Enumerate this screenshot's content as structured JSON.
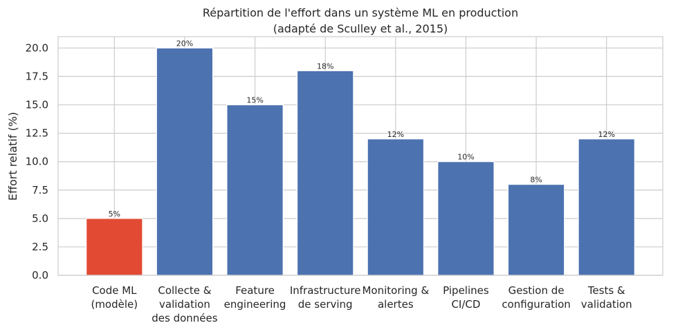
{
  "chart_data": {
    "type": "bar",
    "title": "Répartition de l'effort dans un système ML en production",
    "subtitle": "(adapté de Sculley et al., 2015)",
    "xlabel": "",
    "ylabel": "Effort relatif (%)",
    "ylim": [
      0,
      21
    ],
    "yticks": [
      0,
      2.5,
      5,
      7.5,
      10,
      12.5,
      15,
      17.5,
      20
    ],
    "ytick_labels": [
      "0.0",
      "2.5",
      "5.0",
      "7.5",
      "10.0",
      "12.5",
      "15.0",
      "17.5",
      "20.0"
    ],
    "grid": true,
    "categories": [
      "Code ML\n(modèle)",
      "Collecte &\nvalidation\ndes données",
      "Feature\nengineering",
      "Infrastructure\nde serving",
      "Monitoring &\nalertes",
      "Pipelines\nCI/CD",
      "Gestion de\nconfiguration",
      "Tests &\nvalidation"
    ],
    "values": [
      5,
      20,
      15,
      18,
      12,
      10,
      8,
      12
    ],
    "value_labels": [
      "5%",
      "20%",
      "15%",
      "18%",
      "12%",
      "10%",
      "8%",
      "12%"
    ],
    "colors": [
      "#e24a33",
      "#4c72b0",
      "#4c72b0",
      "#4c72b0",
      "#4c72b0",
      "#4c72b0",
      "#4c72b0",
      "#4c72b0"
    ]
  }
}
